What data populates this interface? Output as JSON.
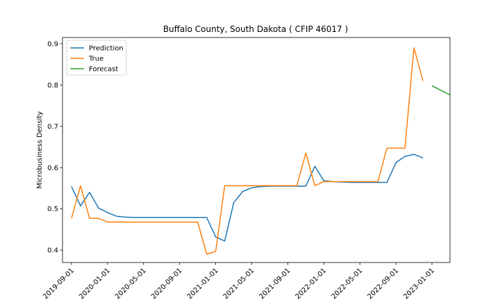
{
  "chart_data": {
    "type": "line",
    "title": "Buffalo County, South Dakota ( CFIP 46017 )",
    "xlabel": "",
    "ylabel": "Microbusiness Density",
    "ylim": [
      0.37,
      0.915
    ],
    "xlim": [
      "2019-08-01",
      "2023-03-01"
    ],
    "y_ticks": [
      0.4,
      0.5,
      0.6,
      0.7,
      0.8,
      0.9
    ],
    "y_tick_labels": [
      "0.4",
      "0.5",
      "0.6",
      "0.7",
      "0.8",
      "0.9"
    ],
    "x_ticks": [
      "2019-09-01",
      "2020-01-01",
      "2020-05-01",
      "2020-09-01",
      "2021-01-01",
      "2021-05-01",
      "2021-09-01",
      "2022-01-01",
      "2022-05-01",
      "2022-09-01",
      "2023-01-01"
    ],
    "legend_position": "upper-left",
    "series": [
      {
        "name": "Prediction",
        "color": "#1f77b4",
        "x": [
          "2019-09-01",
          "2019-10-01",
          "2019-11-01",
          "2019-12-01",
          "2020-01-01",
          "2020-02-01",
          "2020-03-01",
          "2020-04-01",
          "2020-05-01",
          "2020-06-01",
          "2020-07-01",
          "2020-08-01",
          "2020-09-01",
          "2020-10-01",
          "2020-11-01",
          "2020-12-01",
          "2021-01-01",
          "2021-02-01",
          "2021-03-01",
          "2021-04-01",
          "2021-05-01",
          "2021-06-01",
          "2021-07-01",
          "2021-08-01",
          "2021-09-01",
          "2021-10-01",
          "2021-11-01",
          "2021-12-01",
          "2022-01-01",
          "2022-02-01",
          "2022-03-01",
          "2022-04-01",
          "2022-05-01",
          "2022-06-01",
          "2022-07-01",
          "2022-08-01",
          "2022-09-01",
          "2022-10-01",
          "2022-11-01",
          "2022-12-01"
        ],
        "values": [
          0.554,
          0.507,
          0.54,
          0.502,
          0.491,
          0.482,
          0.48,
          0.479,
          0.479,
          0.479,
          0.479,
          0.479,
          0.479,
          0.479,
          0.479,
          0.479,
          0.432,
          0.422,
          0.515,
          0.542,
          0.551,
          0.554,
          0.555,
          0.555,
          0.555,
          0.555,
          0.555,
          0.603,
          0.568,
          0.566,
          0.565,
          0.564,
          0.564,
          0.564,
          0.564,
          0.564,
          0.612,
          0.627,
          0.632,
          0.623
        ]
      },
      {
        "name": "True",
        "color": "#ff7f0e",
        "x": [
          "2019-09-01",
          "2019-10-01",
          "2019-11-01",
          "2019-12-01",
          "2020-01-01",
          "2020-02-01",
          "2020-03-01",
          "2020-04-01",
          "2020-05-01",
          "2020-06-01",
          "2020-07-01",
          "2020-08-01",
          "2020-09-01",
          "2020-10-01",
          "2020-11-01",
          "2020-12-01",
          "2021-01-01",
          "2021-02-01",
          "2021-03-01",
          "2021-04-01",
          "2021-05-01",
          "2021-06-01",
          "2021-07-01",
          "2021-08-01",
          "2021-09-01",
          "2021-10-01",
          "2021-11-01",
          "2021-12-01",
          "2022-01-01",
          "2022-02-01",
          "2022-03-01",
          "2022-04-01",
          "2022-05-01",
          "2022-06-01",
          "2022-07-01",
          "2022-08-01",
          "2022-09-01",
          "2022-10-01",
          "2022-11-01",
          "2022-12-01"
        ],
        "values": [
          0.477,
          0.556,
          0.477,
          0.477,
          0.468,
          0.468,
          0.468,
          0.468,
          0.468,
          0.468,
          0.468,
          0.468,
          0.468,
          0.468,
          0.468,
          0.39,
          0.397,
          0.556,
          0.556,
          0.556,
          0.556,
          0.556,
          0.556,
          0.556,
          0.556,
          0.556,
          0.635,
          0.556,
          0.566,
          0.566,
          0.566,
          0.566,
          0.566,
          0.566,
          0.566,
          0.647,
          0.647,
          0.647,
          0.89,
          0.81
        ]
      },
      {
        "name": "Forecast",
        "color": "#2ca02c",
        "x": [
          "2023-01-01",
          "2023-02-01",
          "2023-03-01"
        ],
        "values": [
          0.798,
          0.787,
          0.776
        ]
      }
    ]
  }
}
